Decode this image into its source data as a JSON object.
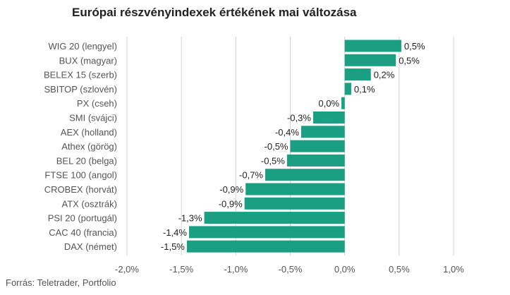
{
  "title": "Európai részvényindexek értékének mai változása",
  "source": "Forrás: Teletrader, Portfolio",
  "colors": {
    "bar": "#1a9f82",
    "grid": "#d4d4d4",
    "text": "#555555",
    "value_text": "#222222"
  },
  "chart_data": {
    "type": "bar",
    "orientation": "horizontal",
    "categories": [
      "WIG 20 (lengyel)",
      "BUX (magyar)",
      "BELEX 15 (szerb)",
      "SBITOP (szlovén)",
      "PX (cseh)",
      "SMI (svájci)",
      "AEX (holland)",
      "Athex (görög)",
      "BEL 20 (belga)",
      "FTSE 100 (angol)",
      "CROBEX (horvát)",
      "ATX (osztrák)",
      "PSI 20 (portugál)",
      "CAC 40 (francia)",
      "DAX (német)"
    ],
    "values": [
      0.52,
      0.47,
      0.24,
      0.06,
      -0.03,
      -0.29,
      -0.4,
      -0.5,
      -0.53,
      -0.73,
      -0.91,
      -0.92,
      -1.29,
      -1.43,
      -1.45
    ],
    "value_labels": [
      "0,5%",
      "0,5%",
      "0,2%",
      "0,1%",
      "0,0%",
      "-0,3%",
      "-0,4%",
      "-0,5%",
      "-0,5%",
      "-0,7%",
      "-0,9%",
      "-0,9%",
      "-1,3%",
      "-1,4%",
      "-1,5%"
    ],
    "xlim": [
      -2.0,
      1.0
    ],
    "xticks": [
      -2.0,
      -1.5,
      -1.0,
      -0.5,
      0.0,
      0.5,
      1.0
    ],
    "xtick_labels": [
      "-2,0%",
      "-1,5%",
      "-1,0%",
      "-0,5%",
      "0,0%",
      "0,5%",
      "1,0%"
    ],
    "grid": true,
    "legend": "none"
  }
}
